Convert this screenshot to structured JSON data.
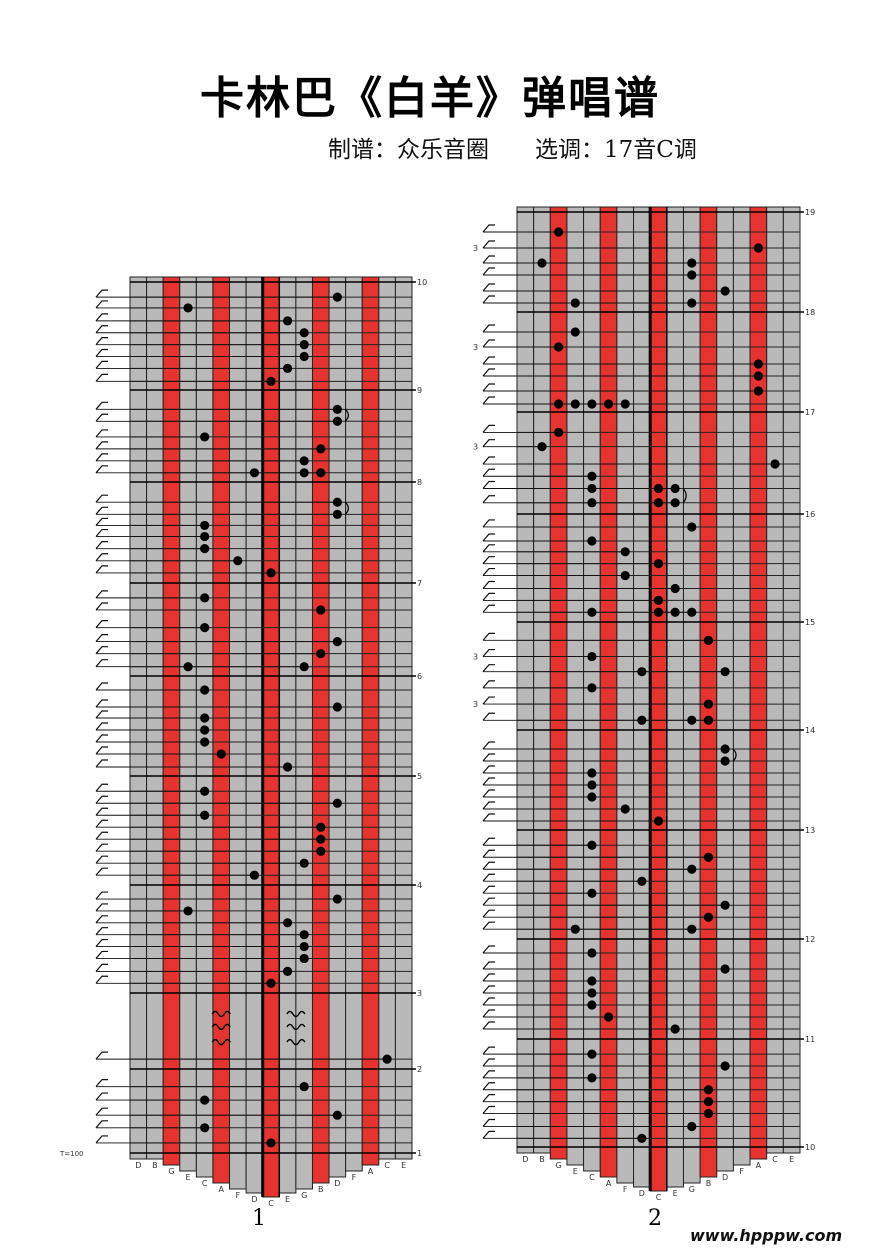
{
  "header": {
    "title": "卡林巴《白羊》弹唱谱",
    "subtitle": "制谱：众乐音圈　　选调：17音C调"
  },
  "colors": {
    "red_tine": "#e5332f",
    "grey_tine": "#b9b9b9",
    "grid_line": "#111111",
    "note": "#000000"
  },
  "tines": [
    "D",
    "B",
    "G",
    "E",
    "C",
    "A",
    "F",
    "D",
    "C",
    "E",
    "G",
    "B",
    "D",
    "F",
    "A",
    "C",
    "E"
  ],
  "red_tines": [
    2,
    5,
    8,
    11,
    14
  ],
  "charts": [
    {
      "page_number": "1",
      "tempo": "T=100",
      "measure_labels": [
        "10",
        "9",
        "8",
        "7",
        "6",
        "5",
        "4",
        "3",
        "2",
        "1"
      ],
      "measures": [
        10,
        9,
        8,
        7,
        6,
        5,
        4,
        3,
        2,
        1
      ],
      "notes": [
        [
          12,
          9.86
        ],
        [
          3,
          9.76
        ],
        [
          9,
          9.64
        ],
        [
          10,
          9.53
        ],
        [
          10,
          9.42
        ],
        [
          10,
          9.31
        ],
        [
          9,
          9.2
        ],
        [
          8,
          9.08
        ],
        [
          12,
          8.79
        ],
        [
          12,
          8.66
        ],
        [
          4,
          8.49
        ],
        [
          11,
          8.36
        ],
        [
          10,
          8.23
        ],
        [
          10,
          8.1
        ],
        [
          11,
          8.1
        ],
        [
          7,
          8.1
        ],
        [
          12,
          7.8
        ],
        [
          12,
          7.68
        ],
        [
          4,
          7.57
        ],
        [
          4,
          7.46
        ],
        [
          4,
          7.34
        ],
        [
          6,
          7.22
        ],
        [
          8,
          7.1
        ],
        [
          4,
          6.84
        ],
        [
          11,
          6.71
        ],
        [
          4,
          6.52
        ],
        [
          12,
          6.37
        ],
        [
          11,
          6.24
        ],
        [
          3,
          6.1
        ],
        [
          10,
          6.1
        ],
        [
          4,
          5.86
        ],
        [
          12,
          5.69
        ],
        [
          4,
          5.58
        ],
        [
          4,
          5.46
        ],
        [
          4,
          5.34
        ],
        [
          5,
          5.22
        ],
        [
          9,
          5.09
        ],
        [
          4,
          4.86
        ],
        [
          12,
          4.75
        ],
        [
          4,
          4.64
        ],
        [
          11,
          4.53
        ],
        [
          11,
          4.42
        ],
        [
          11,
          4.31
        ],
        [
          10,
          4.2
        ],
        [
          7,
          4.09
        ],
        [
          12,
          3.87
        ],
        [
          3,
          3.76
        ],
        [
          9,
          3.65
        ],
        [
          10,
          3.54
        ],
        [
          10,
          3.43
        ],
        [
          10,
          3.32
        ],
        [
          9,
          3.2
        ],
        [
          8,
          3.09
        ],
        [
          15,
          2.13
        ],
        [
          10,
          1.79
        ],
        [
          4,
          1.63
        ],
        [
          12,
          1.45
        ],
        [
          4,
          1.3
        ],
        [
          8,
          1.12
        ]
      ],
      "ties": [
        [
          12,
          8.79,
          8.66
        ],
        [
          12,
          7.8,
          7.68
        ]
      ],
      "tremolo": {
        "tines": [
          5,
          9.5
        ],
        "times": [
          2.75,
          2.58,
          2.38
        ]
      },
      "triplets": []
    },
    {
      "page_number": "2",
      "tempo": "",
      "measure_labels": [
        "19",
        "18",
        "17",
        "16",
        "15",
        "14",
        "13",
        "12",
        "11",
        "10"
      ],
      "measures": [
        19,
        18,
        17,
        16,
        15,
        14,
        13,
        12,
        11,
        10
      ],
      "notes": [
        [
          2,
          18.8
        ],
        [
          14,
          18.64
        ],
        [
          1,
          18.49
        ],
        [
          10,
          18.49
        ],
        [
          10,
          18.37
        ],
        [
          12,
          18.21
        ],
        [
          10,
          18.09
        ],
        [
          3,
          18.09
        ],
        [
          3,
          17.8
        ],
        [
          2,
          17.65
        ],
        [
          14,
          17.48
        ],
        [
          14,
          17.36
        ],
        [
          14,
          17.21
        ],
        [
          2,
          17.08
        ],
        [
          3,
          17.08
        ],
        [
          4,
          17.08
        ],
        [
          5,
          17.08
        ],
        [
          6,
          17.08
        ],
        [
          2,
          16.8
        ],
        [
          1,
          16.66
        ],
        [
          15,
          16.49
        ],
        [
          4,
          16.37
        ],
        [
          8,
          16.25
        ],
        [
          9,
          16.25
        ],
        [
          4,
          16.25
        ],
        [
          4,
          16.11
        ],
        [
          8,
          16.11
        ],
        [
          9,
          16.11
        ],
        [
          10,
          15.88
        ],
        [
          4,
          15.75
        ],
        [
          6,
          15.65
        ],
        [
          8,
          15.54
        ],
        [
          6,
          15.43
        ],
        [
          9,
          15.31
        ],
        [
          8,
          15.2
        ],
        [
          8,
          15.09
        ],
        [
          9,
          15.09
        ],
        [
          10,
          15.09
        ],
        [
          4,
          15.09
        ],
        [
          11,
          14.83
        ],
        [
          4,
          14.68
        ],
        [
          7,
          14.54
        ],
        [
          12,
          14.54
        ],
        [
          4,
          14.39
        ],
        [
          11,
          14.24
        ],
        [
          7,
          14.09
        ],
        [
          10,
          14.09
        ],
        [
          11,
          14.09
        ],
        [
          12,
          13.81
        ],
        [
          12,
          13.69
        ],
        [
          4,
          13.57
        ],
        [
          4,
          13.45
        ],
        [
          4,
          13.33
        ],
        [
          6,
          13.21
        ],
        [
          8,
          13.09
        ],
        [
          4,
          12.86
        ],
        [
          11,
          12.75
        ],
        [
          10,
          12.64
        ],
        [
          7,
          12.53
        ],
        [
          4,
          12.42
        ],
        [
          12,
          12.31
        ],
        [
          11,
          12.2
        ],
        [
          3,
          12.09
        ],
        [
          10,
          12.09
        ],
        [
          4,
          11.86
        ],
        [
          12,
          11.7
        ],
        [
          4,
          11.58
        ],
        [
          4,
          11.46
        ],
        [
          4,
          11.34
        ],
        [
          5,
          11.22
        ],
        [
          9,
          11.1
        ],
        [
          4,
          10.86
        ],
        [
          12,
          10.75
        ],
        [
          4,
          10.64
        ],
        [
          11,
          10.53
        ],
        [
          11,
          10.42
        ],
        [
          11,
          10.31
        ],
        [
          10,
          10.19
        ],
        [
          7,
          10.08
        ]
      ],
      "ties": [
        [
          9,
          16.25,
          16.11
        ],
        [
          12,
          13.81,
          13.69
        ]
      ],
      "tremolo": null,
      "triplets": [
        {
          "label": "3",
          "t": 18.64
        },
        {
          "label": "3",
          "t": 17.65
        },
        {
          "label": "3",
          "t": 16.66
        },
        {
          "label": "3",
          "t": 14.68
        },
        {
          "label": "3",
          "t": 14.24
        }
      ]
    }
  ],
  "watermark": "www.hpppw.com"
}
